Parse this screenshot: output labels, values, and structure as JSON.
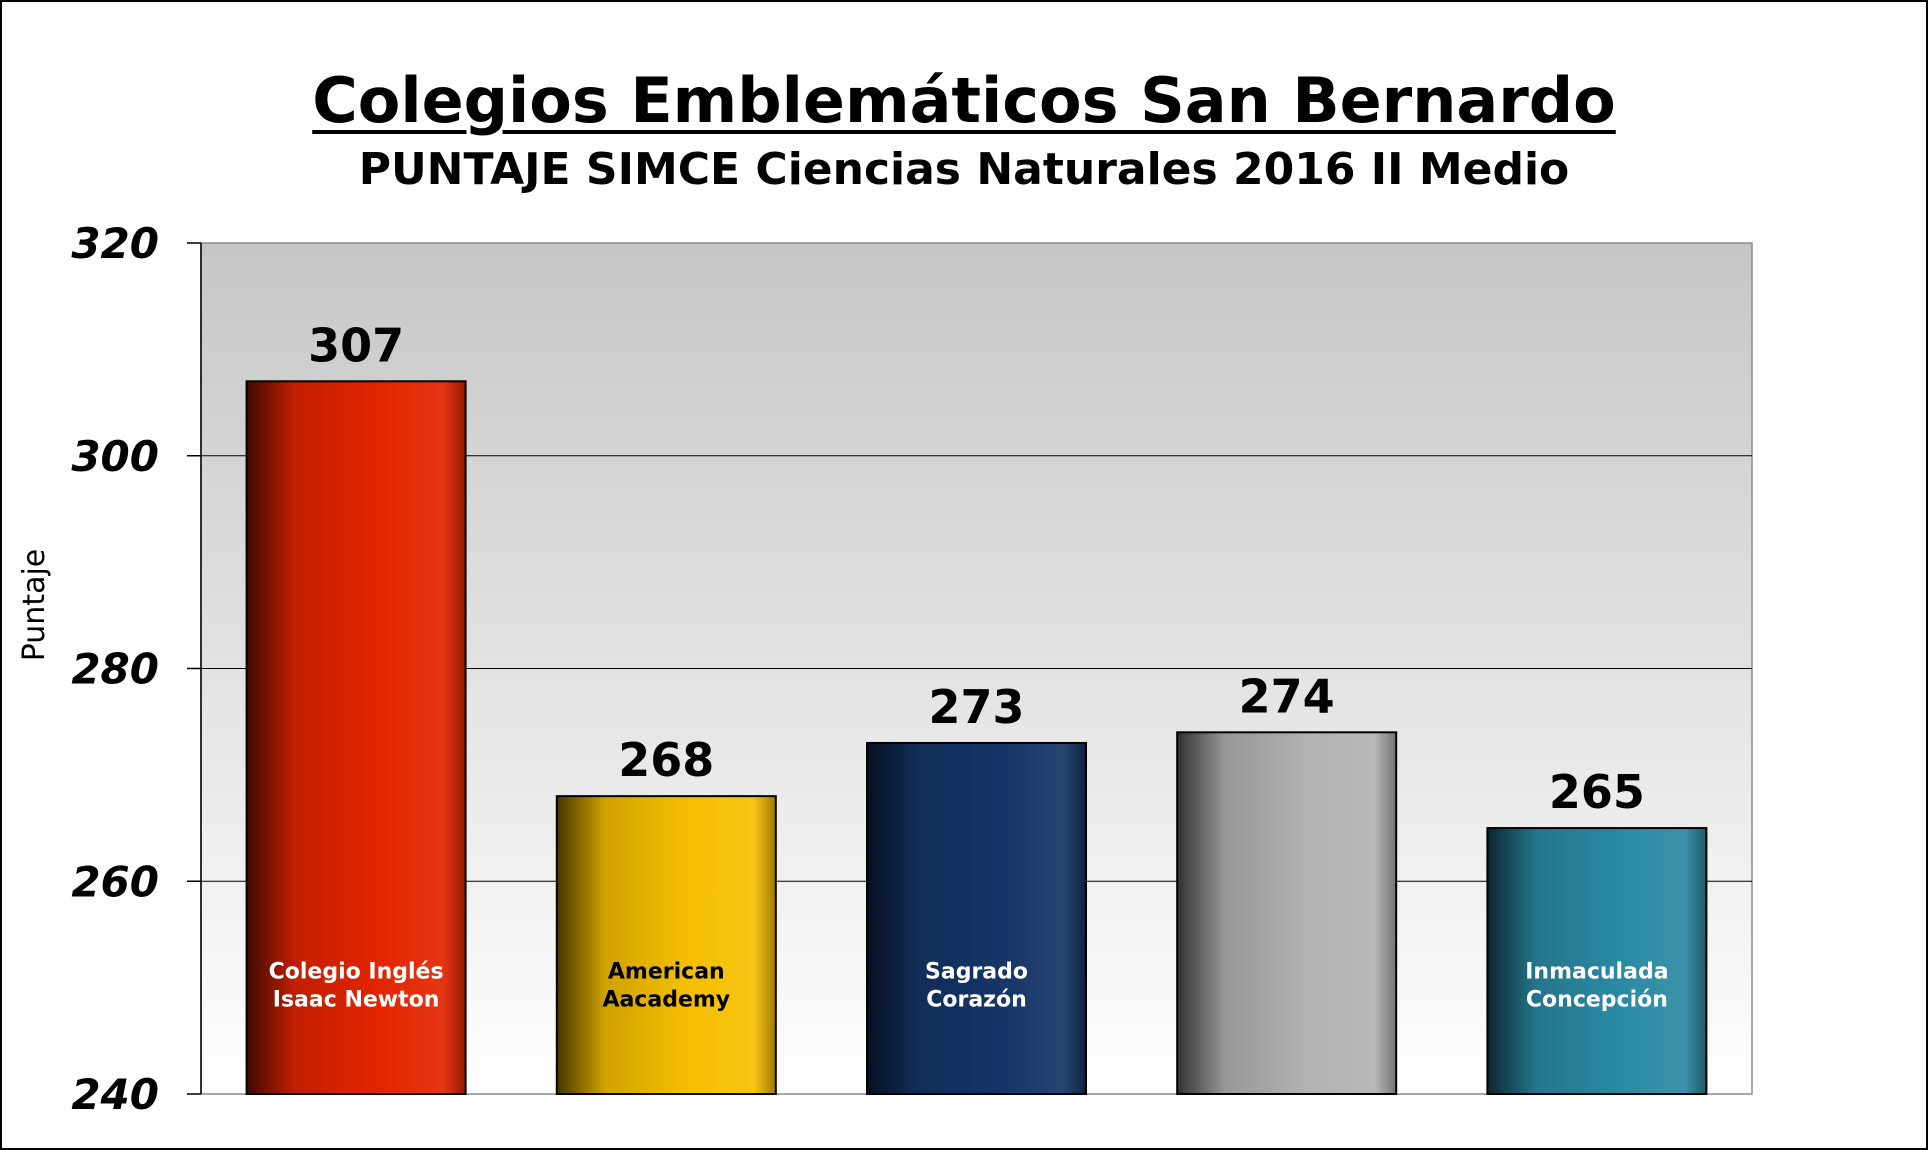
{
  "chart_data": {
    "type": "bar",
    "title": "Colegios Emblemáticos San Bernardo",
    "subtitle": "PUNTAJE SIMCE Ciencias Naturales 2016 II Medio",
    "xlabel": "",
    "ylabel": "Puntaje",
    "ylim": [
      240,
      320
    ],
    "yticks": [
      240,
      260,
      280,
      300,
      320
    ],
    "grid": true,
    "legend": "none",
    "categories": [
      "Colegio Inglés Isaac Newton",
      "American Aacademy",
      "Sagrado Corazón",
      "",
      "Inmaculada Concepción"
    ],
    "category_label_lines": [
      [
        "Colegio Inglés",
        "Isaac Newton"
      ],
      [
        "American",
        "Aacademy"
      ],
      [
        "Sagrado",
        "Corazón"
      ],
      [],
      [
        "Inmaculada",
        "Concepción"
      ]
    ],
    "values": [
      307,
      268,
      273,
      274,
      265
    ],
    "bar_colors": [
      "#e32400",
      "#f5bf00",
      "#143566",
      "#b3b3b3",
      "#2a8aa3"
    ],
    "category_label_colors": [
      "#ffffff",
      "#000000",
      "#ffffff",
      "#000000",
      "#ffffff"
    ]
  }
}
